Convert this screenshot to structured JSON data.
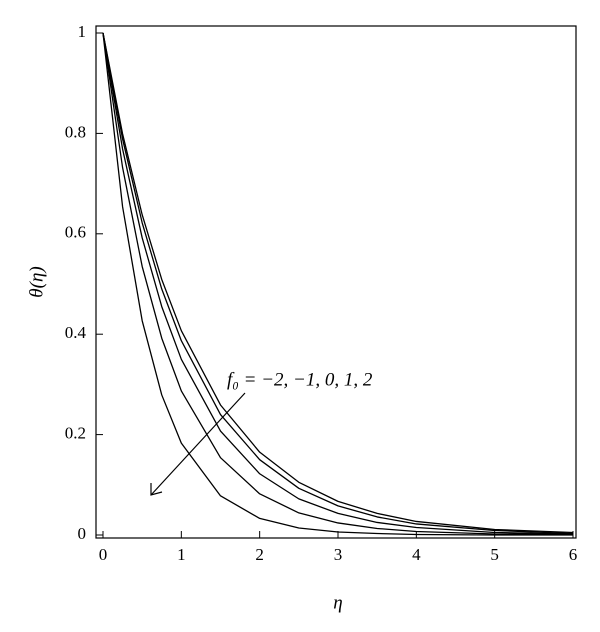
{
  "chart_data": {
    "type": "line",
    "xlabel": "η",
    "ylabel": "θ(η)",
    "annotation": "f₀ = −2, −1, 0, 1, 2",
    "x": [
      0,
      0.25,
      0.5,
      0.75,
      1,
      1.5,
      2,
      2.5,
      3,
      3.5,
      4,
      5,
      6
    ],
    "series": [
      {
        "color": "#000000",
        "values": [
          1,
          0.799,
          0.638,
          0.509,
          0.407,
          0.259,
          0.165,
          0.105,
          0.067,
          0.043,
          0.027,
          0.011,
          0.005
        ]
      },
      {
        "color": "#000000",
        "values": [
          1,
          0.789,
          0.622,
          0.49,
          0.387,
          0.24,
          0.15,
          0.093,
          0.058,
          0.036,
          0.022,
          0.009,
          0.003
        ]
      },
      {
        "color": "#000000",
        "values": [
          1,
          0.769,
          0.592,
          0.455,
          0.35,
          0.207,
          0.122,
          0.072,
          0.043,
          0.025,
          0.015,
          0.005,
          0.002
        ]
      },
      {
        "color": "#000000",
        "values": [
          1,
          0.732,
          0.535,
          0.392,
          0.287,
          0.154,
          0.082,
          0.044,
          0.024,
          0.013,
          0.007,
          0.002,
          0.001
        ]
      },
      {
        "color": "#000000",
        "values": [
          1,
          0.654,
          0.427,
          0.279,
          0.183,
          0.078,
          0.033,
          0.014,
          0.006,
          0.003,
          0.001,
          0,
          0
        ]
      }
    ],
    "xlim": [
      0,
      6
    ],
    "xticks": [
      0,
      1,
      2,
      3,
      4,
      5,
      6
    ],
    "ylim": [
      0,
      1
    ],
    "yticks": [
      0,
      0.2,
      0.4,
      0.6,
      0.8,
      1
    ],
    "grid": false
  }
}
